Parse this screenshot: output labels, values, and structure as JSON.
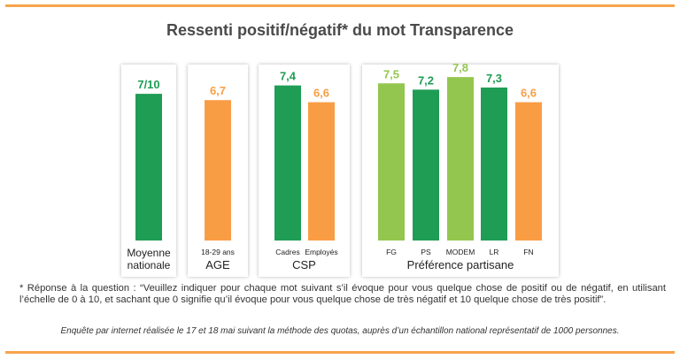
{
  "title": "Ressenti positif/négatif* du mot Transparence",
  "colors": {
    "dark_green": "#1f9d55",
    "light_green": "#93c64f",
    "orange": "#f99d45",
    "rule": "#f7a54b"
  },
  "chart_data": {
    "type": "bar",
    "title": "Ressenti positif/négatif* du mot Transparence",
    "ylim": [
      0,
      10
    ],
    "grid": false,
    "groups": [
      {
        "name": "Moyenne nationale",
        "name_lines": [
          "Moyenne",
          "nationale"
        ],
        "bars": [
          {
            "category": "",
            "value": 7.0,
            "label": "7/10",
            "color": "#1f9d55"
          }
        ]
      },
      {
        "name": "AGE",
        "bars": [
          {
            "category": "18-29 ans",
            "value": 6.7,
            "label": "6,7",
            "color": "#f99d45"
          }
        ]
      },
      {
        "name": "CSP",
        "bars": [
          {
            "category": "Cadres",
            "value": 7.4,
            "label": "7,4",
            "color": "#1f9d55"
          },
          {
            "category": "Employés",
            "value": 6.6,
            "label": "6,6",
            "color": "#f99d45"
          }
        ]
      },
      {
        "name": "Préférence partisane",
        "bars": [
          {
            "category": "FG",
            "value": 7.5,
            "label": "7,5",
            "color": "#93c64f"
          },
          {
            "category": "PS",
            "value": 7.2,
            "label": "7,2",
            "color": "#1f9d55"
          },
          {
            "category": "MODEM",
            "value": 7.8,
            "label": "7,8",
            "color": "#93c64f"
          },
          {
            "category": "LR",
            "value": 7.3,
            "label": "7,3",
            "color": "#1f9d55"
          },
          {
            "category": "FN",
            "value": 6.6,
            "label": "6,6",
            "color": "#f99d45"
          }
        ]
      }
    ]
  },
  "footnote": "* Réponse à la question : “Veuillez indiquer pour chaque mot suivant s’il évoque pour vous quelque chose de positif ou de négatif, en utilisant l’échelle de 0 à 10, et sachant que 0 signifie qu’il évoque pour vous quelque chose de très négatif et 10 quelque chose de très positif”.",
  "source": "Enquête par internet réalisée le 17 et 18 mai suivant la méthode des quotas, auprès d’un échantillon national représentatif de 1000 personnes."
}
